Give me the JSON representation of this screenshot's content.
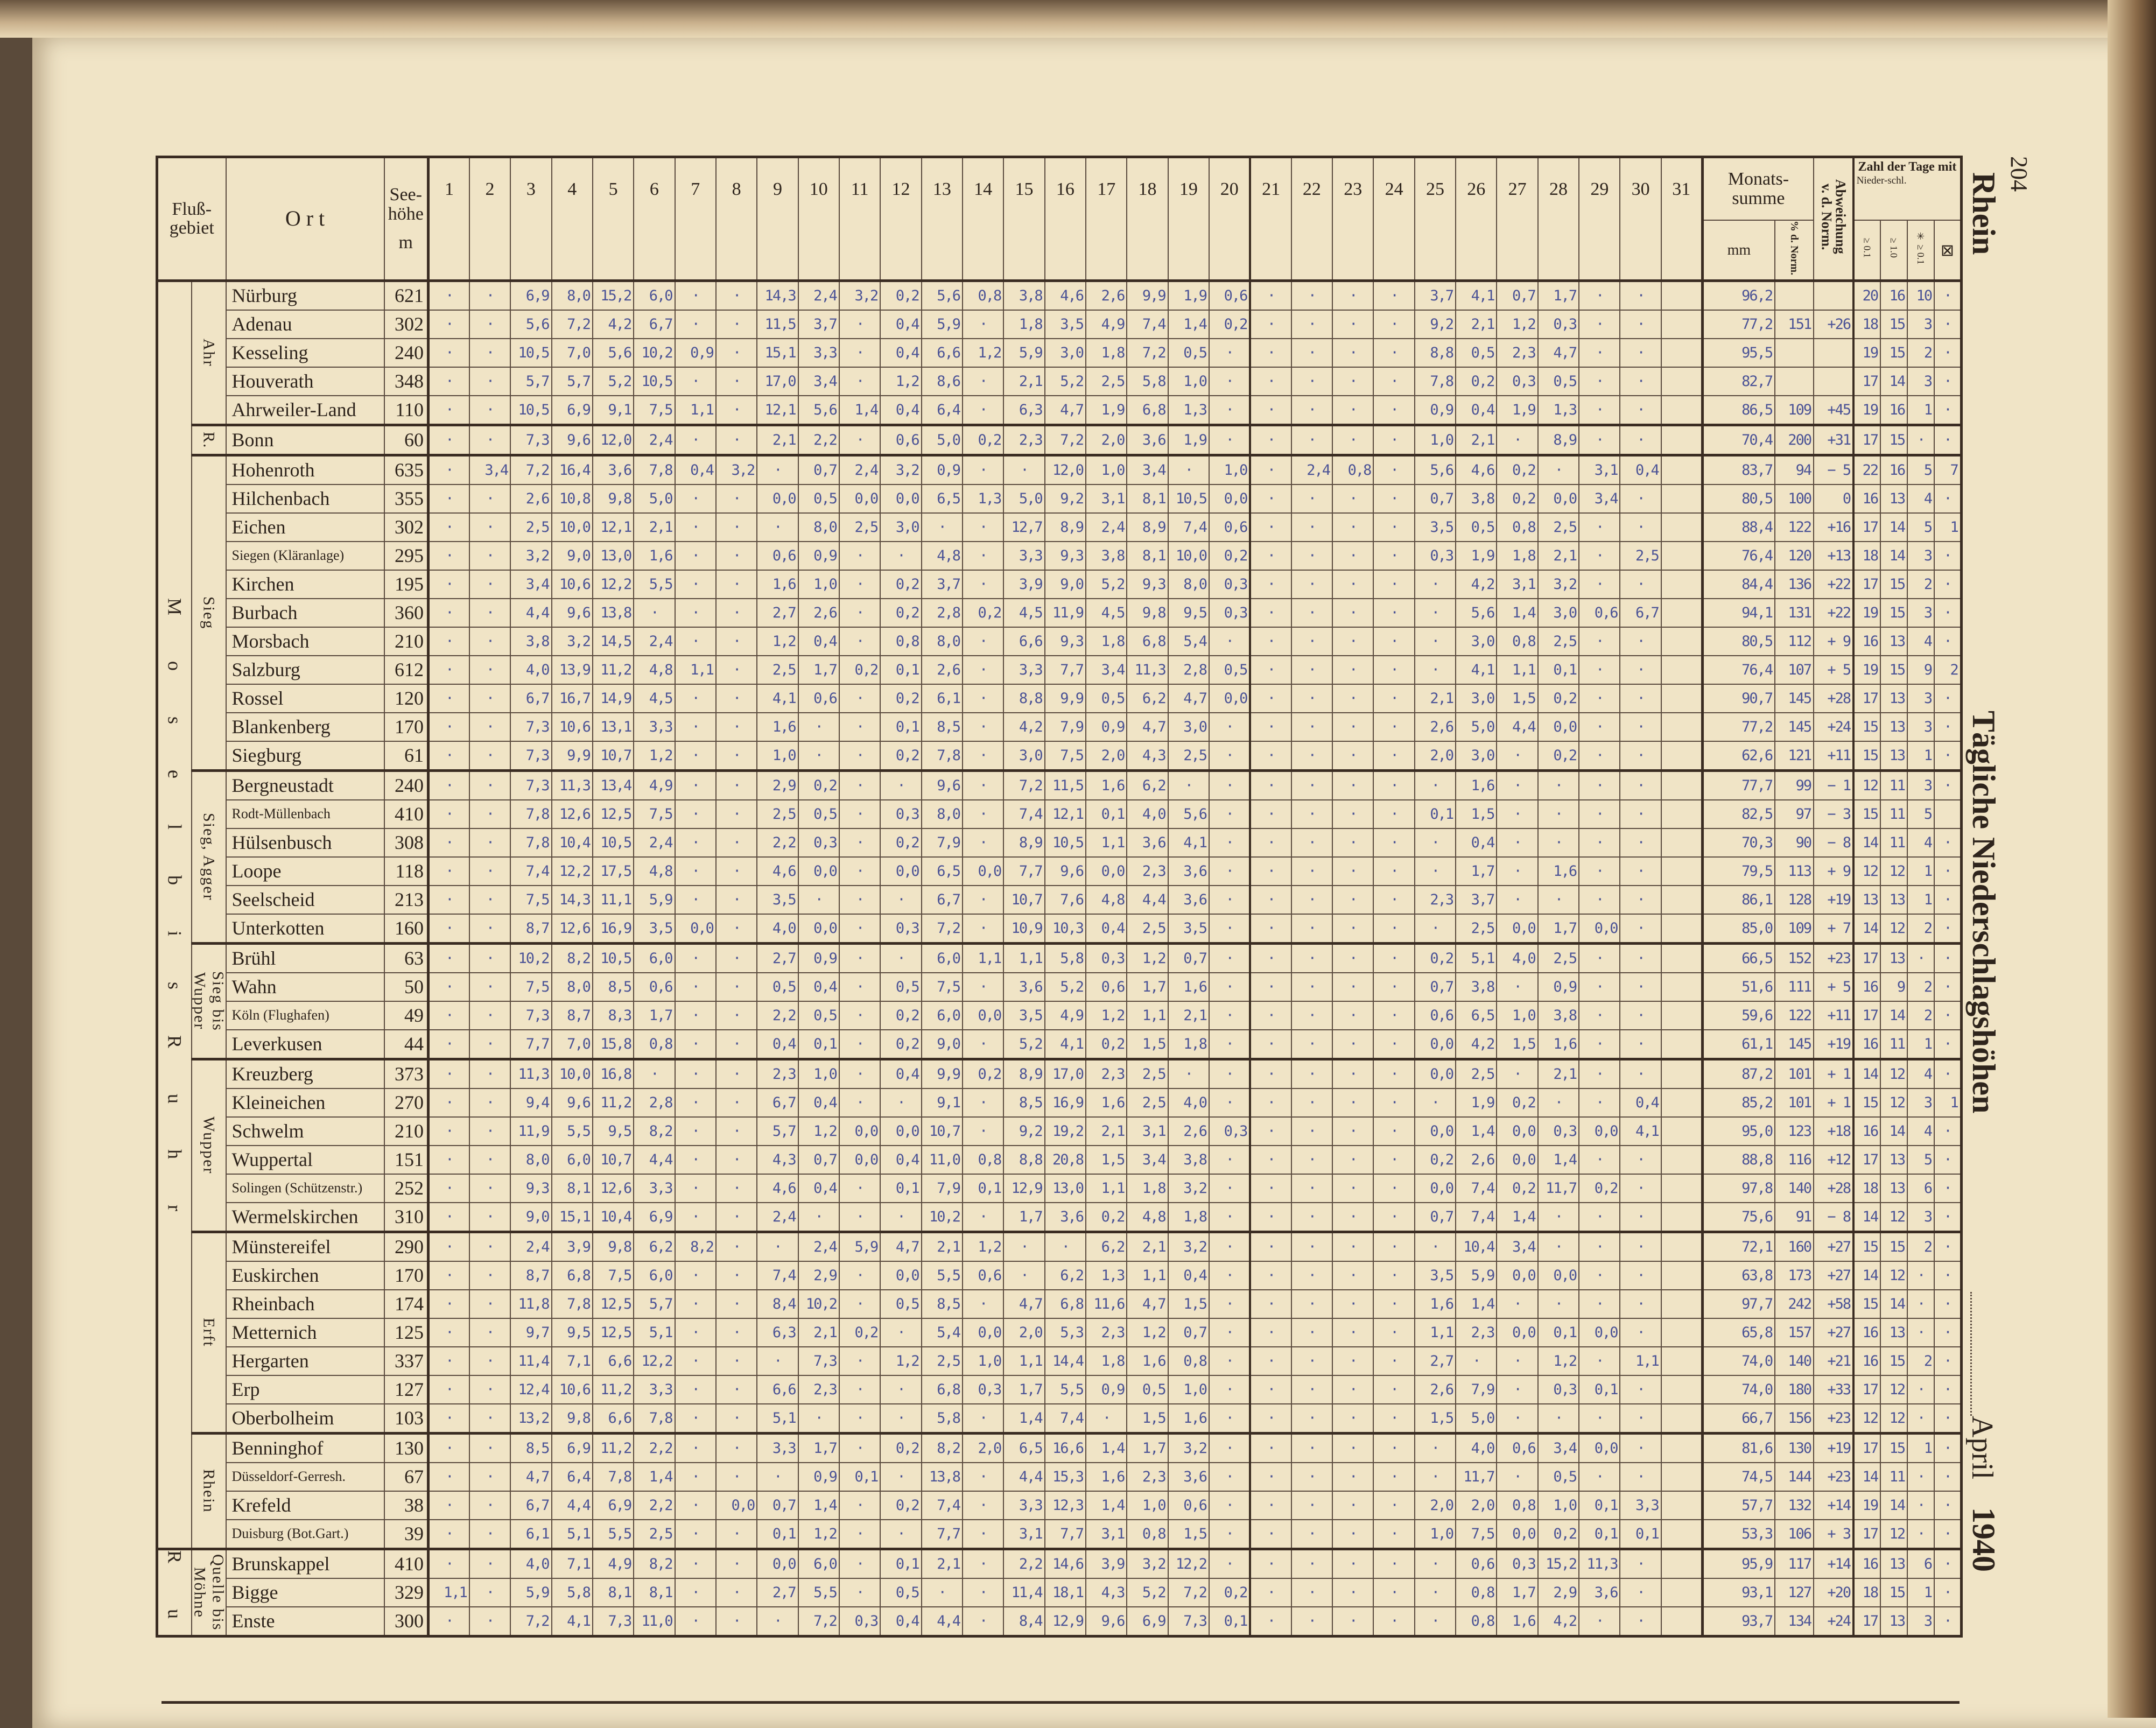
{
  "page_number": "204",
  "river": "Rhein",
  "title": "Tägliche Niederschlagshöhen",
  "month": "April",
  "year": "1940",
  "header": {
    "flussgebiet": "Fluß-gebiet",
    "ort": "O r t",
    "seehoehe": "See-höhe",
    "seehoehe_unit": "m",
    "days": [
      "1",
      "2",
      "3",
      "4",
      "5",
      "6",
      "7",
      "8",
      "9",
      "10",
      "11",
      "12",
      "13",
      "14",
      "15",
      "16",
      "17",
      "18",
      "19",
      "20",
      "21",
      "22",
      "23",
      "24",
      "25",
      "26",
      "27",
      "28",
      "29",
      "30",
      "31"
    ],
    "monatssumme": "Monats-summe",
    "mm": "mm",
    "pct_norm": "% d. Norm.",
    "abweichung": "Abweichung v. d. Norm.",
    "zahl_der_tage": "Zahl der Tage mit",
    "niederschl": "Nieder-schl.",
    "ge01": "≥ 0.1",
    "ge10": "≥ 1.0",
    "snow_ge01": "✳ ≥ 0.1",
    "hail": "⊠"
  },
  "outer_groups": [
    {
      "label": "M o s e l   b i s   R u h r",
      "rows": 44
    },
    {
      "label": "R u h r",
      "rows": 3
    }
  ],
  "groups": [
    {
      "label": "Ahr",
      "rows": [
        {
          "name": "Nürburg",
          "elev": "621",
          "days": "· · 6,9 8,0 15,2 6,0 · · 14,3 2,4 3,2 0,2 5,6 0,8 3,8 4,6 2,6 9,9 1,9 0,6 · · · · 3,7 4,1 0,7 1,7 · ·",
          "sum": "96,2",
          "pct": "",
          "dev": "",
          "n01": "20",
          "n10": "16",
          "snow": "10",
          "hail": "·"
        },
        {
          "name": "Adenau",
          "elev": "302",
          "days": "· · 5,6 7,2 4,2 6,7 · · 11,5 3,7 · 0,4 5,9 · 1,8 3,5 4,9 7,4 1,4 0,2 · · · · 9,2 2,1 1,2 0,3 · ·",
          "sum": "77,2",
          "pct": "151",
          "dev": "+26",
          "n01": "18",
          "n10": "15",
          "snow": "3",
          "hail": "·"
        },
        {
          "name": "Kesseling",
          "elev": "240",
          "days": "· · 10,5 7,0 5,6 10,2 0,9 · 15,1 3,3 · 0,4 6,6 1,2 5,9 3,0 1,8 7,2 0,5 · · · · · 8,8 0,5 2,3 4,7 · ·",
          "sum": "95,5",
          "pct": "",
          "dev": "",
          "n01": "19",
          "n10": "15",
          "snow": "2",
          "hail": "·"
        },
        {
          "name": "Houverath",
          "elev": "348",
          "days": "· · 5,7 5,7 5,2 10,5 · · 17,0 3,4 · 1,2 8,6 · 2,1 5,2 2,5 5,8 1,0 · · · · · 7,8 0,2 0,3 0,5 · ·",
          "sum": "82,7",
          "pct": "",
          "dev": "",
          "n01": "17",
          "n10": "14",
          "snow": "3",
          "hail": "·"
        },
        {
          "name": "Ahrweiler-Land",
          "elev": "110",
          "days": "· · 10,5 6,9 9,1 7,5 1,1 · 12,1 5,6 1,4 0,4 6,4 · 6,3 4,7 1,9 6,8 1,3 · · · · · 0,9 0,4 1,9 1,3 · ·",
          "sum": "86,5",
          "pct": "109",
          "dev": "+45",
          "n01": "19",
          "n10": "16",
          "snow": "1",
          "hail": "·"
        }
      ]
    },
    {
      "label": "R.",
      "rows": [
        {
          "name": "Bonn",
          "elev": "60",
          "days": "· · 7,3 9,6 12,0 2,4 · · 2,1 2,2 · 0,6 5,0 0,2 2,3 7,2 2,0 3,6 1,9 · · · · · 1,0 2,1 · 8,9 · ·",
          "sum": "70,4",
          "pct": "200",
          "dev": "+31",
          "n01": "17",
          "n10": "15",
          "snow": "·",
          "hail": "·"
        }
      ]
    },
    {
      "label": "Sieg",
      "rows": [
        {
          "name": "Hohenroth",
          "elev": "635",
          "days": "· 3,4 7,2 16,4 3,6 7,8 0,4 3,2 · 0,7 2,4 3,2 0,9 · · 12,0 1,0 3,4 · 1,0 · 2,4 0,8 · 5,6 4,6 0,2 · 3,1 0,4",
          "sum": "83,7",
          "pct": "94",
          "dev": "− 5",
          "n01": "22",
          "n10": "16",
          "snow": "5",
          "hail": "7"
        },
        {
          "name": "Hilchenbach",
          "elev": "355",
          "days": "· · 2,6 10,8 9,8 5,0 · · 0,0 0,5 0,0 0,0 6,5 1,3 5,0 9,2 3,1 8,1 10,5 0,0 · · · · 0,7 3,8 0,2 0,0 3,4 ·",
          "sum": "80,5",
          "pct": "100",
          "dev": "0",
          "n01": "16",
          "n10": "13",
          "snow": "4",
          "hail": "·"
        },
        {
          "name": "Eichen",
          "elev": "302",
          "days": "· · 2,5 10,0 12,1 2,1 · · · 8,0 2,5 3,0 · · 12,7 8,9 2,4 8,9 7,4 0,6 · · · · 3,5 0,5 0,8 2,5 · ·",
          "sum": "88,4",
          "pct": "122",
          "dev": "+16",
          "n01": "17",
          "n10": "14",
          "snow": "5",
          "hail": "1"
        },
        {
          "name": "Siegen (Kläranlage)",
          "small": true,
          "elev": "295",
          "days": "· · 3,2 9,0 13,0 1,6 · · 0,6 0,9 · · 4,8 · 3,3 9,3 3,8 8,1 10,0 0,2 · · · · 0,3 1,9 1,8 2,1 · 2,5",
          "sum": "76,4",
          "pct": "120",
          "dev": "+13",
          "n01": "18",
          "n10": "14",
          "snow": "3",
          "hail": "·"
        },
        {
          "name": "Kirchen",
          "elev": "195",
          "days": "· · 3,4 10,6 12,2 5,5 · · 1,6 1,0 · 0,2 3,7 · 3,9 9,0 5,2 9,3 8,0 0,3 · · · · · 4,2 3,1 3,2 · ·",
          "sum": "84,4",
          "pct": "136",
          "dev": "+22",
          "n01": "17",
          "n10": "15",
          "snow": "2",
          "hail": "·"
        },
        {
          "name": "Burbach",
          "elev": "360",
          "days": "· · 4,4 9,6 13,8 · · · 2,7 2,6 · 0,2 2,8 0,2 4,5 11,9 4,5 9,8 9,5 0,3 · · · · · 5,6 1,4 3,0 0,6 6,7",
          "sum": "94,1",
          "pct": "131",
          "dev": "+22",
          "n01": "19",
          "n10": "15",
          "snow": "3",
          "hail": "·"
        },
        {
          "name": "Morsbach",
          "elev": "210",
          "days": "· · 3,8 3,2 14,5 2,4 · · 1,2 0,4 · 0,8 8,0 · 6,6 9,3 1,8 6,8 5,4 · · · · · · 3,0 0,8 2,5 · ·",
          "sum": "80,5",
          "pct": "112",
          "dev": "+ 9",
          "n01": "16",
          "n10": "13",
          "snow": "4",
          "hail": "·"
        },
        {
          "name": "Salzburg",
          "elev": "612",
          "days": "· · 4,0 13,9 11,2 4,8 1,1 · 2,5 1,7 0,2 0,1 2,6 · 3,3 7,7 3,4 11,3 2,8 0,5 · · · · · 4,1 1,1 0,1 · ·",
          "sum": "76,4",
          "pct": "107",
          "dev": "+ 5",
          "n01": "19",
          "n10": "15",
          "snow": "9",
          "hail": "2"
        },
        {
          "name": "Rossel",
          "elev": "120",
          "days": "· · 6,7 16,7 14,9 4,5 · · 4,1 0,6 · 0,2 6,1 · 8,8 9,9 0,5 6,2 4,7 0,0 · · · · 2,1 3,0 1,5 0,2 · ·",
          "sum": "90,7",
          "pct": "145",
          "dev": "+28",
          "n01": "17",
          "n10": "13",
          "snow": "3",
          "hail": "·"
        },
        {
          "name": "Blankenberg",
          "elev": "170",
          "days": "· · 7,3 10,6 13,1 3,3 · · 1,6 · · 0,1 8,5 · 4,2 7,9 0,9 4,7 3,0 · · · · · 2,6 5,0 4,4 0,0 · ·",
          "sum": "77,2",
          "pct": "145",
          "dev": "+24",
          "n01": "15",
          "n10": "13",
          "snow": "3",
          "hail": "·"
        },
        {
          "name": "Siegburg",
          "elev": "61",
          "days": "· · 7,3 9,9 10,7 1,2 · · 1,0 · · 0,2 7,8 · 3,0 7,5 2,0 4,3 2,5 · · · · · 2,0 3,0 · 0,2 · ·",
          "sum": "62,6",
          "pct": "121",
          "dev": "+11",
          "n01": "15",
          "n10": "13",
          "snow": "1",
          "hail": "·"
        }
      ]
    },
    {
      "label": "Sieg, Agger",
      "rows": [
        {
          "name": "Bergneustadt",
          "elev": "240",
          "days": "· · 7,3 11,3 13,4 4,9 · · 2,9 0,2 · · 9,6 · 7,2 11,5 1,6 6,2 · · · · · · · 1,6 · · · ·",
          "sum": "77,7",
          "pct": "99",
          "dev": "− 1",
          "n01": "12",
          "n10": "11",
          "snow": "3",
          "hail": "·"
        },
        {
          "name": "Rodt-Müllenbach",
          "small": true,
          "elev": "410",
          "days": "· · 7,8 12,6 12,5 7,5 · · 2,5 0,5 · 0,3 8,0 · 7,4 12,1 0,1 4,0 5,6 · · · · · 0,1 1,5 · · · ·",
          "sum": "82,5",
          "pct": "97",
          "dev": "− 3",
          "n01": "15",
          "n10": "11",
          "snow": "5",
          "hail": ""
        },
        {
          "name": "Hülsenbusch",
          "elev": "308",
          "days": "· · 7,8 10,4 10,5 2,4 · · 2,2 0,3 · 0,2 7,9 · 8,9 10,5 1,1 3,6 4,1 · · · · · · 0,4 · · · ·",
          "sum": "70,3",
          "pct": "90",
          "dev": "− 8",
          "n01": "14",
          "n10": "11",
          "snow": "4",
          "hail": "·"
        },
        {
          "name": "Loope",
          "elev": "118",
          "days": "· · 7,4 12,2 17,5 4,8 · · 4,6 0,0 · 0,0 6,5 0,0 7,7 9,6 0,0 2,3 3,6 · · · · · · 1,7 · 1,6 · ·",
          "sum": "79,5",
          "pct": "113",
          "dev": "+ 9",
          "n01": "12",
          "n10": "12",
          "snow": "1",
          "hail": "·"
        },
        {
          "name": "Seelscheid",
          "elev": "213",
          "days": "· · 7,5 14,3 11,1 5,9 · · 3,5 · · · 6,7 · 10,7 7,6 4,8 4,4 3,6 · · · · · 2,3 3,7 · · · ·",
          "sum": "86,1",
          "pct": "128",
          "dev": "+19",
          "n01": "13",
          "n10": "13",
          "snow": "1",
          "hail": "·"
        },
        {
          "name": "Unterkotten",
          "elev": "160",
          "days": "· · 8,7 12,6 16,9 3,5 0,0 · 4,0 0,0 · 0,3 7,2 · 10,9 10,3 0,4 2,5 3,5 · · · · · · 2,5 0,0 1,7 0,0 ·",
          "sum": "85,0",
          "pct": "109",
          "dev": "+ 7",
          "n01": "14",
          "n10": "12",
          "snow": "2",
          "hail": "·"
        }
      ]
    },
    {
      "label": "Sieg bis Wupper",
      "rows": [
        {
          "name": "Brühl",
          "elev": "63",
          "days": "· · 10,2 8,2 10,5 6,0 · · 2,7 0,9 · · 6,0 1,1 1,1 5,8 0,3 1,2 0,7 · · · · · 0,2 5,1 4,0 2,5 · ·",
          "sum": "66,5",
          "pct": "152",
          "dev": "+23",
          "n01": "17",
          "n10": "13",
          "snow": "·",
          "hail": "·"
        },
        {
          "name": "Wahn",
          "elev": "50",
          "days": "· · 7,5 8,0 8,5 0,6 · · 0,5 0,4 · 0,5 7,5 · 3,6 5,2 0,6 1,7 1,6 · · · · · 0,7 3,8 · 0,9 · ·",
          "sum": "51,6",
          "pct": "111",
          "dev": "+ 5",
          "n01": "16",
          "n10": "9",
          "snow": "2",
          "hail": "·"
        },
        {
          "name": "Köln (Flughafen)",
          "small": true,
          "elev": "49",
          "days": "· · 7,3 8,7 8,3 1,7 · · 2,2 0,5 · 0,2 6,0 0,0 3,5 4,9 1,2 1,1 2,1 · · · · · 0,6 6,5 1,0 3,8 · ·",
          "sum": "59,6",
          "pct": "122",
          "dev": "+11",
          "n01": "17",
          "n10": "14",
          "snow": "2",
          "hail": "·"
        },
        {
          "name": "Leverkusen",
          "elev": "44",
          "days": "· · 7,7 7,0 15,8 0,8 · · 0,4 0,1 · 0,2 9,0 · 5,2 4,1 0,2 1,5 1,8 · · · · · 0,0 4,2 1,5 1,6 · ·",
          "sum": "61,1",
          "pct": "145",
          "dev": "+19",
          "n01": "16",
          "n10": "11",
          "snow": "1",
          "hail": "·"
        }
      ]
    },
    {
      "label": "Wupper",
      "rows": [
        {
          "name": "Kreuzberg",
          "elev": "373",
          "days": "· · 11,3 10,0 16,8 · · · 2,3 1,0 · 0,4 9,9 0,2 8,9 17,0 2,3 2,5 · · · · · · 0,0 2,5 · 2,1 · ·",
          "sum": "87,2",
          "pct": "101",
          "dev": "+ 1",
          "n01": "14",
          "n10": "12",
          "snow": "4",
          "hail": "·"
        },
        {
          "name": "Kleineichen",
          "elev": "270",
          "days": "· · 9,4 9,6 11,2 2,8 · · 6,7 0,4 · · 9,1 · 8,5 16,9 1,6 2,5 4,0 · · · · · · 1,9 0,2 · · 0,4",
          "sum": "85,2",
          "pct": "101",
          "dev": "+ 1",
          "n01": "15",
          "n10": "12",
          "snow": "3",
          "hail": "1"
        },
        {
          "name": "Schwelm",
          "elev": "210",
          "days": "· · 11,9 5,5 9,5 8,2 · · 5,7 1,2 0,0 0,0 10,7 · 9,2 19,2 2,1 3,1 2,6 0,3 · · · · 0,0 1,4 0,0 0,3 0,0 4,1",
          "sum": "95,0",
          "pct": "123",
          "dev": "+18",
          "n01": "16",
          "n10": "14",
          "snow": "4",
          "hail": "·"
        },
        {
          "name": "Wuppertal",
          "elev": "151",
          "days": "· · 8,0 6,0 10,7 4,4 · · 4,3 0,7 0,0 0,4 11,0 0,8 8,8 20,8 1,5 3,4 3,8 · · · · · 0,2 2,6 0,0 1,4 · ·",
          "sum": "88,8",
          "pct": "116",
          "dev": "+12",
          "n01": "17",
          "n10": "13",
          "snow": "5",
          "hail": "·"
        },
        {
          "name": "Solingen (Schützenstr.)",
          "small": true,
          "elev": "252",
          "days": "· · 9,3 8,1 12,6 3,3 · · 4,6 0,4 · 0,1 7,9 0,1 12,9 13,0 1,1 1,8 3,2 · · · · · 0,0 7,4 0,2 11,7 0,2 ·",
          "sum": "97,8",
          "pct": "140",
          "dev": "+28",
          "n01": "18",
          "n10": "13",
          "snow": "6",
          "hail": "·"
        },
        {
          "name": "Wermelskirchen",
          "elev": "310",
          "days": "· · 9,0 15,1 10,4 6,9 · · 2,4 · · · 10,2 · 1,7 3,6 0,2 4,8 1,8 · · · · · 0,7 7,4 1,4 · · ·",
          "sum": "75,6",
          "pct": "91",
          "dev": "− 8",
          "n01": "14",
          "n10": "12",
          "snow": "3",
          "hail": "·"
        }
      ]
    },
    {
      "label": "Erft",
      "rows": [
        {
          "name": "Münstereifel",
          "elev": "290",
          "days": "· · 2,4 3,9 9,8 6,2 8,2 · · 2,4 5,9 4,7 2,1 1,2 · · 6,2 2,1 3,2 · · · · · · 10,4 3,4 · · ·",
          "sum": "72,1",
          "pct": "160",
          "dev": "+27",
          "n01": "15",
          "n10": "15",
          "snow": "2",
          "hail": "·"
        },
        {
          "name": "Euskirchen",
          "elev": "170",
          "days": "· · 8,7 6,8 7,5 6,0 · · 7,4 2,9 · 0,0 5,5 0,6 · 6,2 1,3 1,1 0,4 · · · · · 3,5 5,9 0,0 0,0 · ·",
          "sum": "63,8",
          "pct": "173",
          "dev": "+27",
          "n01": "14",
          "n10": "12",
          "snow": "·",
          "hail": "·"
        },
        {
          "name": "Rheinbach",
          "elev": "174",
          "days": "· · 11,8 7,8 12,5 5,7 · · 8,4 10,2 · 0,5 8,5 · 4,7 6,8 11,6 4,7 1,5 · · · · · 1,6 1,4 · · · ·",
          "sum": "97,7",
          "pct": "242",
          "dev": "+58",
          "n01": "15",
          "n10": "14",
          "snow": "·",
          "hail": "·"
        },
        {
          "name": "Metternich",
          "elev": "125",
          "days": "· · 9,7 9,5 12,5 5,1 · · 6,3 2,1 0,2 · 5,4 0,0 2,0 5,3 2,3 1,2 0,7 · · · · · 1,1 2,3 0,0 0,1 0,0 ·",
          "sum": "65,8",
          "pct": "157",
          "dev": "+27",
          "n01": "16",
          "n10": "13",
          "snow": "·",
          "hail": "·"
        },
        {
          "name": "Hergarten",
          "elev": "337",
          "days": "· · 11,4 7,1 6,6 12,2 · · · 7,3 · 1,2 2,5 1,0 1,1 14,4 1,8 1,6 0,8 · · · · · 2,7 · · 1,2 · 1,1",
          "sum": "74,0",
          "pct": "140",
          "dev": "+21",
          "n01": "16",
          "n10": "15",
          "snow": "2",
          "hail": "·"
        },
        {
          "name": "Erp",
          "elev": "127",
          "days": "· · 12,4 10,6 11,2 3,3 · · 6,6 2,3 · · 6,8 0,3 1,7 5,5 0,9 0,5 1,0 · · · · · 2,6 7,9 · 0,3 0,1 ·",
          "sum": "74,0",
          "pct": "180",
          "dev": "+33",
          "n01": "17",
          "n10": "12",
          "snow": "·",
          "hail": "·"
        },
        {
          "name": "Oberbolheim",
          "elev": "103",
          "days": "· · 13,2 9,8 6,6 7,8 · · 5,1 · · · 5,8 · 1,4 7,4 · 1,5 1,6 · · · · · 1,5 5,0 · · · ·",
          "sum": "66,7",
          "pct": "156",
          "dev": "+23",
          "n01": "12",
          "n10": "12",
          "snow": "·",
          "hail": "·"
        }
      ]
    },
    {
      "label": "Rhein",
      "rows": [
        {
          "name": "Benninghof",
          "elev": "130",
          "days": "· · 8,5 6,9 11,2 2,2 · · 3,3 1,7 · 0,2 8,2 2,0 6,5 16,6 1,4 1,7 3,2 · · · · · · 4,0 0,6 3,4 0,0 ·",
          "sum": "81,6",
          "pct": "130",
          "dev": "+19",
          "n01": "17",
          "n10": "15",
          "snow": "1",
          "hail": "·"
        },
        {
          "name": "Düsseldorf-Gerresh.",
          "small": true,
          "elev": "67",
          "days": "· · 4,7 6,4 7,8 1,4 · · · 0,9 0,1 · 13,8 · 4,4 15,3 1,6 2,3 3,6 · · · · · · 11,7 · 0,5 · ·",
          "sum": "74,5",
          "pct": "144",
          "dev": "+23",
          "n01": "14",
          "n10": "11",
          "snow": "·",
          "hail": "·"
        },
        {
          "name": "Krefeld",
          "elev": "38",
          "days": "· · 6,7 4,4 6,9 2,2 · 0,0 0,7 1,4 · 0,2 7,4 · 3,3 12,3 1,4 1,0 0,6 · · · · · 2,0 2,0 0,8 1,0 0,1 3,3",
          "sum": "57,7",
          "pct": "132",
          "dev": "+14",
          "n01": "19",
          "n10": "14",
          "snow": "·",
          "hail": "·"
        },
        {
          "name": "Duisburg (Bot.Gart.)",
          "small": true,
          "elev": "39",
          "days": "· · 6,1 5,1 5,5 2,5 · · 0,1 1,2 · · 7,7 · 3,1 7,7 3,1 0,8 1,5 · · · · · 1,0 7,5 0,0 0,2 0,1 0,1",
          "sum": "53,3",
          "pct": "106",
          "dev": "+ 3",
          "n01": "17",
          "n10": "12",
          "snow": "·",
          "hail": "·"
        }
      ]
    },
    {
      "label": "Quelle bis Möhne",
      "rows": [
        {
          "name": "Brunskappel",
          "elev": "410",
          "days": "· · 4,0 7,1 4,9 8,2 · · 0,0 6,0 · 0,1 2,1 · 2,2 14,6 3,9 3,2 12,2 · · · · · · 0,6 0,3 15,2 11,3 ·",
          "sum": "95,9",
          "pct": "117",
          "dev": "+14",
          "n01": "16",
          "n10": "13",
          "snow": "6",
          "hail": "·"
        },
        {
          "name": "Bigge",
          "elev": "329",
          "days": "1,1 · 5,9 5,8 8,1 8,1 · · 2,7 5,5 · 0,5 · · 11,4 18,1 4,3 5,2 7,2 0,2 · · · · · 0,8 1,7 2,9 3,6 ·",
          "sum": "93,1",
          "pct": "127",
          "dev": "+20",
          "n01": "18",
          "n10": "15",
          "snow": "1",
          "hail": "·"
        },
        {
          "name": "Enste",
          "elev": "300",
          "days": "· · 7,2 4,1 7,3 11,0 · · · 7,2 0,3 0,4 4,4 · 8,4 12,9 9,6 6,9 7,3 0,1 · · · · · 0,8 1,6 4,2 · ·",
          "sum": "93,7",
          "pct": "134",
          "dev": "+24",
          "n01": "17",
          "n10": "13",
          "snow": "3",
          "hail": "·"
        }
      ]
    }
  ]
}
